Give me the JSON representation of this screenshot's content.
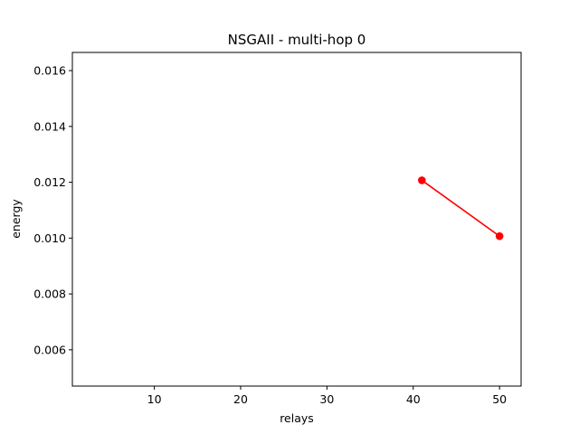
{
  "chart_data": {
    "type": "line",
    "title": "NSGAII - multi-hop 0",
    "xlabel": "relays",
    "ylabel": "energy",
    "xlim": [
      0.5,
      52.5
    ],
    "ylim": [
      0.0047,
      0.01665
    ],
    "xticks": [
      10,
      20,
      30,
      40,
      50
    ],
    "xtick_labels": [
      "10",
      "20",
      "30",
      "40",
      "50"
    ],
    "yticks": [
      0.006,
      0.008,
      0.01,
      0.012,
      0.014,
      0.016
    ],
    "ytick_labels": [
      "0.006",
      "0.008",
      "0.010",
      "0.012",
      "0.014",
      "0.016"
    ],
    "grid": false,
    "series": [
      {
        "color": "#ff0000",
        "marker": "circle",
        "x": [
          41,
          50
        ],
        "y": [
          0.01207,
          0.01007
        ]
      }
    ]
  }
}
